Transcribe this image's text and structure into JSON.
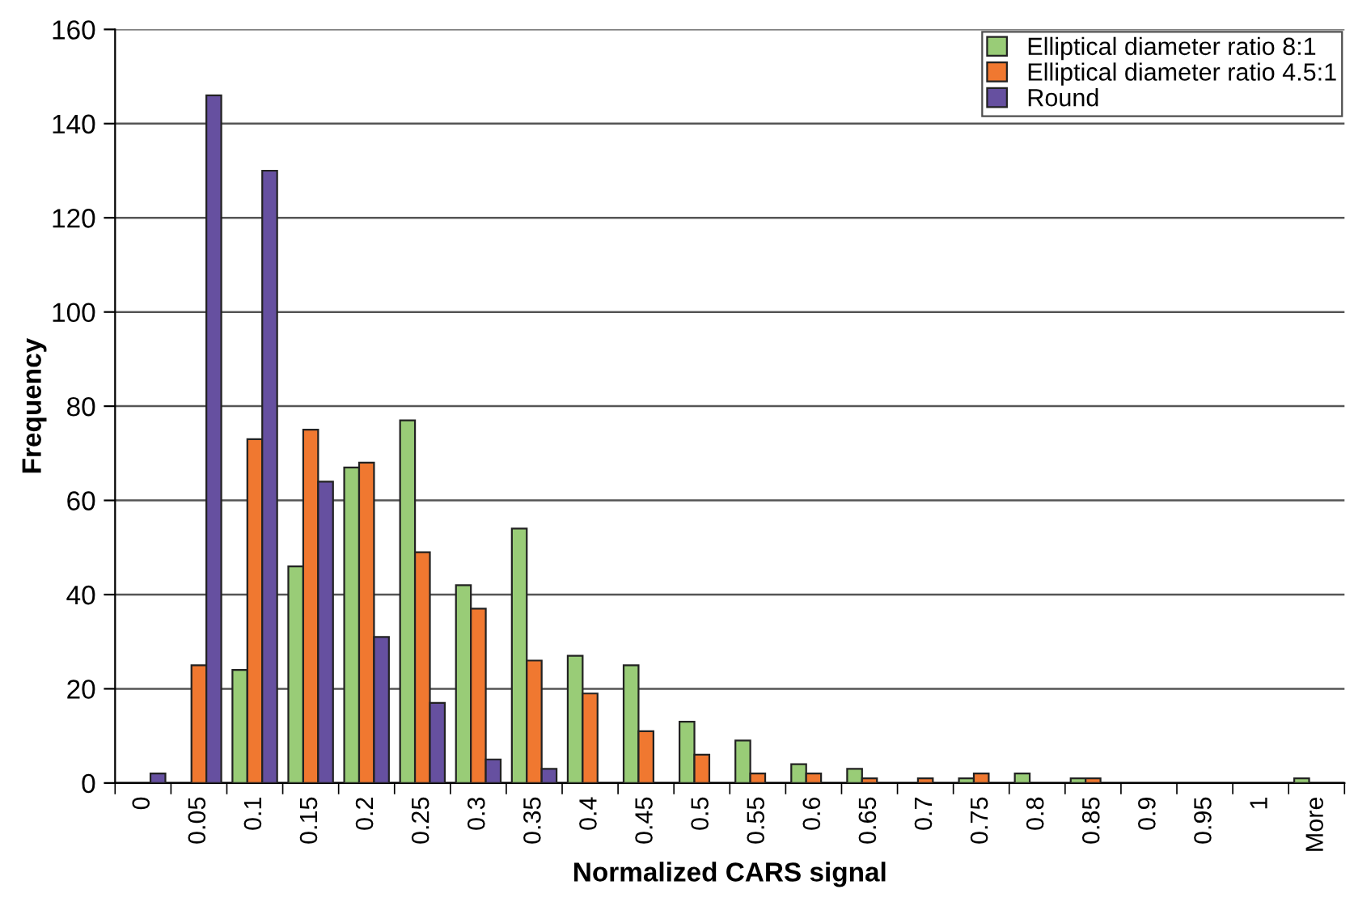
{
  "chart_data": {
    "type": "bar",
    "xlabel": "Normalized CARS signal",
    "ylabel": "Frequency",
    "categories": [
      "0",
      "0.05",
      "0.1",
      "0.15",
      "0.2",
      "0.25",
      "0.3",
      "0.35",
      "0.4",
      "0.45",
      "0.5",
      "0.55",
      "0.6",
      "0.65",
      "0.7",
      "0.75",
      "0.8",
      "0.85",
      "0.9",
      "0.95",
      "1",
      "More"
    ],
    "series": [
      {
        "name": "Elliptical diameter ratio 8:1",
        "color": "#99cc77",
        "values": [
          0,
          0,
          24,
          46,
          67,
          77,
          42,
          54,
          27,
          25,
          13,
          9,
          4,
          3,
          0,
          1,
          2,
          1,
          0,
          0,
          0,
          1
        ]
      },
      {
        "name": "Elliptical diameter ratio 4.5:1",
        "color": "#f07830",
        "values": [
          0,
          25,
          73,
          75,
          68,
          49,
          37,
          26,
          19,
          11,
          6,
          2,
          2,
          1,
          1,
          2,
          0,
          1,
          0,
          0,
          0,
          0
        ]
      },
      {
        "name": "Round",
        "color": "#6650a0",
        "values": [
          2,
          146,
          130,
          64,
          31,
          17,
          5,
          3,
          0,
          0,
          0,
          0,
          0,
          0,
          0,
          0,
          0,
          0,
          0,
          0,
          0,
          0
        ]
      }
    ],
    "ylim": [
      0,
      160
    ],
    "yticks": [
      0,
      20,
      40,
      60,
      80,
      100,
      120,
      140,
      160
    ],
    "grid": "y",
    "legend": "top right"
  }
}
